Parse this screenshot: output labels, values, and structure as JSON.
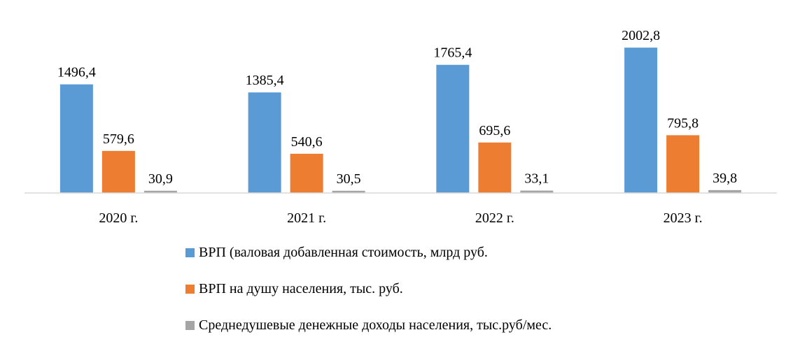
{
  "chart_data": {
    "type": "bar",
    "categories": [
      "2020 г.",
      "2021 г.",
      "2022 г.",
      "2023 г."
    ],
    "series": [
      {
        "name": "ВРП (валовая добавленная стоимость,  млрд руб.",
        "values": [
          1496.4,
          1385.4,
          1765.4,
          2002.8
        ],
        "labels": [
          "1496,4",
          "1385,4",
          "1765,4",
          "2002,8"
        ],
        "color": "#5B9BD5"
      },
      {
        "name": "ВРП на душу населения, тыс. руб.",
        "values": [
          579.6,
          540.6,
          695.6,
          795.8
        ],
        "labels": [
          "579,6",
          "540,6",
          "695,6",
          "795,8"
        ],
        "color": "#ED7D31"
      },
      {
        "name": "Среднедушевые денежные доходы населения, тыс.руб/мес.",
        "values": [
          30.9,
          30.5,
          33.1,
          39.8
        ],
        "labels": [
          "30,9",
          "30,5",
          "33,1",
          "39,8"
        ],
        "color": "#A5A5A5"
      }
    ],
    "ylim": [
      0,
      2100
    ],
    "grid": false,
    "legend_position": "bottom",
    "axis_color": "#D9D9D9"
  }
}
